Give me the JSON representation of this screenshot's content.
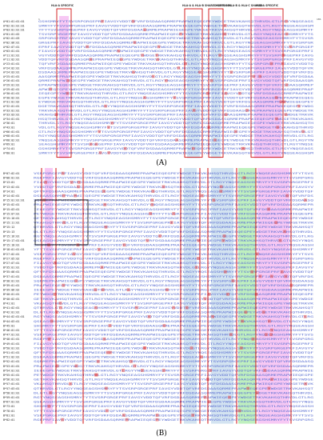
{
  "figure": {
    "panel_a_label": "(A)",
    "panel_b_label": "(B)"
  },
  "panel_a": {
    "top_numbers": {
      "start": "1",
      "end": "181"
    },
    "region_labels": [
      {
        "id": "hla-a-specific-left",
        "text": "HLA-A SPECIFIC",
        "color": "#ffccff"
      },
      {
        "id": "hla-a-b-shared",
        "text": "HLA-A & HLA-B SHARED EPITOPES",
        "color": "#cfe0f0"
      },
      {
        "id": "hla-a-b-c-shared",
        "text": "HLA-A & HLA-B & HLA-C SHARED",
        "color": "#d9f2d9"
      },
      {
        "id": "hla-a-specific-right",
        "text": "HLA-A SPECIFIC",
        "color": "#ffccff"
      }
    ],
    "alleles": [
      "A*01:01:01:01",
      "A*02:01:01:01",
      "A*03:01:01:01",
      "A*01:01:02",
      "A*02:01:03",
      "A*02:06:01",
      "A*02:07:01",
      "A*03:01:01",
      "A*11:01:01",
      "A*11:02:01",
      "A*23:01:01",
      "A*24:02:01",
      "A*24:03:01",
      "A*25:01:01",
      "A*26:01:01",
      "A*29:01:01",
      "A*29:02:01",
      "A*30:01:01",
      "A*30:02:01",
      "A*31:01:02",
      "A*32:01:01",
      "A*33:01:01",
      "A*33:03:01",
      "A*34:01:01",
      "A*36:01",
      "A*43:01",
      "A*66:01:01",
      "A*68:01:01",
      "A*68:02:01",
      "A*69:01",
      "A*74:01",
      "A*80:01"
    ]
  },
  "panel_b": {
    "alleles": [
      "B*07:02:01",
      "B*08:01:01",
      "B*13:01",
      "B*13:02:01",
      "B*14:01",
      "B*14:02:01",
      "B*15:01:01:01",
      "B*15:02:01",
      "B*15:03:01",
      "B*15:07:01",
      "B*15:10:01",
      "B*15:11:01",
      "B*15:12",
      "B*15:13",
      "B*15:16:01",
      "B*15:17:01:01",
      "B*15:18:01",
      "B*18:01:01:01",
      "B*27:02:01",
      "B*27:05:02",
      "B*27:07:01",
      "B*35:01:01",
      "B*35:08:01",
      "B*37:01:01",
      "B*38:01:01",
      "B*39:01:01",
      "B*39:06:02",
      "B*40:01:01",
      "B*40:02:01",
      "B*41:01",
      "B*41:02:01",
      "B*42:01:01",
      "B*44:02:01:01",
      "B*44:03:01",
      "B*45:01",
      "B*46:01:01",
      "B*47:01:01",
      "B*48:01:01",
      "B*49:01:01",
      "B*50:01:01",
      "B*51:01:01",
      "B*51:02:01",
      "B*52:01:01",
      "B*53:01:01",
      "B*54:01:01",
      "B*55:01:01",
      "B*56:01:01",
      "B*57:01:01",
      "B*57:03:01",
      "B*58:01:01",
      "B*59:01:01",
      "B*67:01:01",
      "B*73:01",
      "B*78:01",
      "B*81:01",
      "B*82:01"
    ]
  },
  "colors": {
    "residue_text": "#5b6fd1",
    "mismatch": "#e34b4b",
    "box_red": "#d01010",
    "box_black": "#000000",
    "pink": "#f7c8f4",
    "blue": "#d3e3f1",
    "green": "#bff0bf"
  }
}
